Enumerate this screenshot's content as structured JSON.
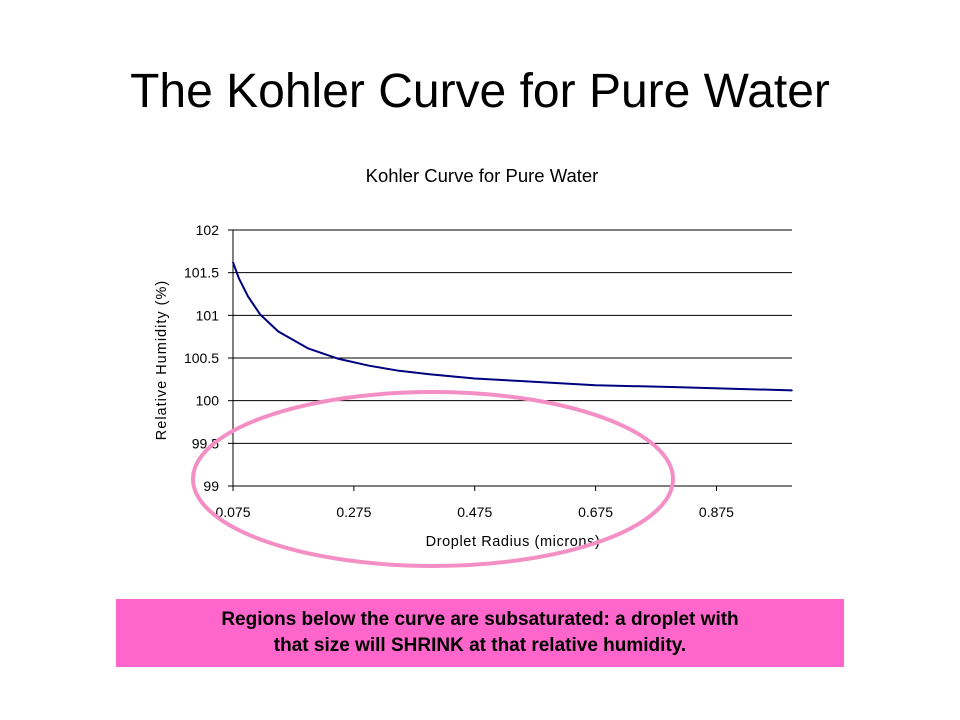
{
  "slide": {
    "title": "The Kohler Curve for Pure Water"
  },
  "note": {
    "line1": "Regions below  the curve are subsaturated:  a droplet with",
    "line2": "that size will SHRINK at that relative humidity."
  },
  "colors": {
    "series": "#000080",
    "ellipse": "#f48fc6",
    "note_background": "#ff66cc",
    "gridlines": "#000000"
  },
  "chart_data": {
    "type": "line",
    "title": "Kohler Curve for Pure Water",
    "xlabel": "Droplet Radius (microns)",
    "ylabel": "Relative Humidity (%)",
    "xlim": [
      0.075,
      1.0
    ],
    "ylim": [
      99,
      102
    ],
    "x_ticks": [
      "0.075",
      "0.275",
      "0.475",
      "0.675",
      "0.875"
    ],
    "y_ticks": [
      "102",
      "101.5",
      "101",
      "100.5",
      "100",
      "99.5",
      "99"
    ],
    "grid": true,
    "legend": "none",
    "series": [
      {
        "x": [
          0.075,
          0.085,
          0.1,
          0.12,
          0.15,
          0.2,
          0.25,
          0.3,
          0.35,
          0.4,
          0.475,
          0.55,
          0.675,
          0.8,
          0.9,
          1.0
        ],
        "values": [
          101.62,
          101.43,
          101.22,
          101.01,
          100.81,
          100.61,
          100.49,
          100.41,
          100.35,
          100.31,
          100.26,
          100.23,
          100.18,
          100.16,
          100.14,
          100.12
        ]
      }
    ]
  }
}
